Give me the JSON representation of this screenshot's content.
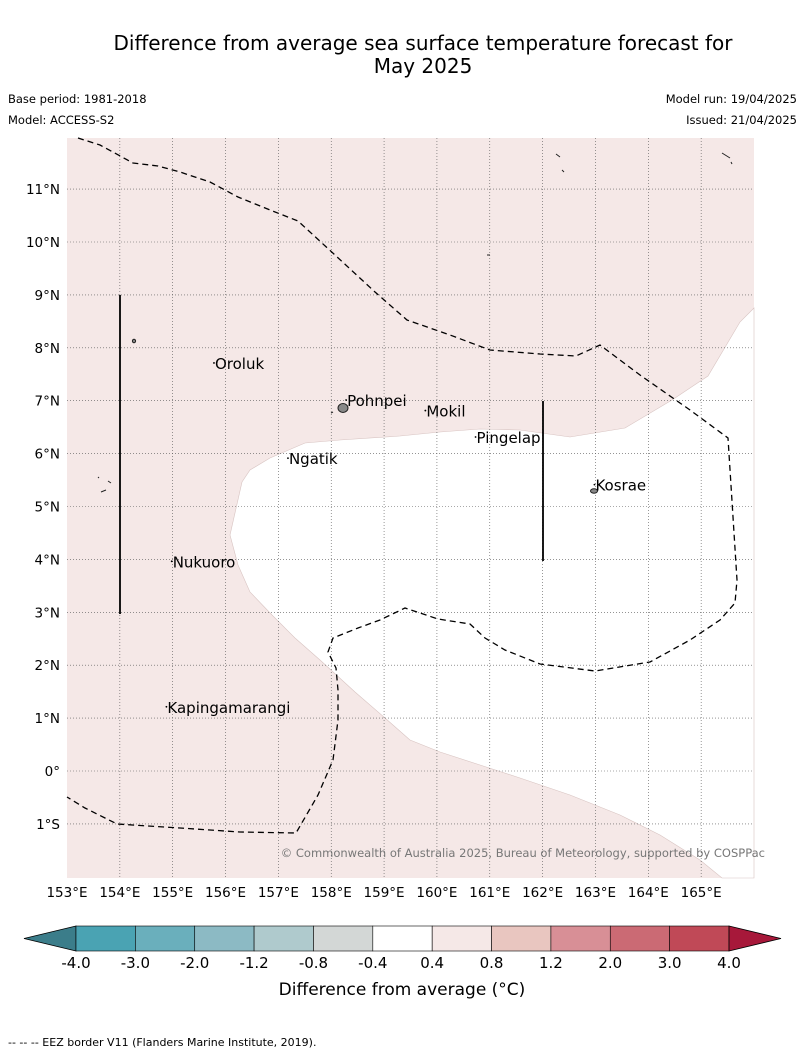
{
  "title_line1": "Difference from average sea surface temperature forecast for",
  "title_line2": "May 2025",
  "base_period": "Base period: 1981-2018",
  "model": "Model: ACCESS-S2",
  "model_run": "Model run: 19/04/2025",
  "issued": "Issued: 21/04/2025",
  "copyright": "© Commonwealth of Australia 2025, Bureau of Meteorology, supported by COSPPac",
  "lon_ticks": [
    "153°E",
    "154°E",
    "155°E",
    "156°E",
    "157°E",
    "158°E",
    "159°E",
    "160°E",
    "161°E",
    "162°E",
    "163°E",
    "164°E",
    "165°E"
  ],
  "lat_ticks": [
    "11°N",
    "10°N",
    "9°N",
    "8°N",
    "7°N",
    "6°N",
    "5°N",
    "4°N",
    "3°N",
    "2°N",
    "1°N",
    "0°",
    "1°S"
  ],
  "places": [
    {
      "name": "Oroluk",
      "lon": 155.8,
      "lat": 7.6
    },
    {
      "name": "Pohnpei",
      "lon": 158.3,
      "lat": 6.9
    },
    {
      "name": "Mokil",
      "lon": 159.8,
      "lat": 6.7
    },
    {
      "name": "Pingelap",
      "lon": 160.75,
      "lat": 6.2
    },
    {
      "name": "Ngatik",
      "lon": 157.2,
      "lat": 5.8
    },
    {
      "name": "Kosrae",
      "lon": 163.0,
      "lat": 5.3
    },
    {
      "name": "Nukuoro",
      "lon": 155.0,
      "lat": 3.85
    },
    {
      "name": "Kapingamarangi",
      "lon": 154.9,
      "lat": 1.1
    }
  ],
  "colorbar": {
    "title": "Difference from average (°C)",
    "tick_labels": [
      "-4.0",
      "-3.0",
      "-2.0",
      "-1.2",
      "-0.8",
      "-0.4",
      "0.4",
      "0.8",
      "1.2",
      "2.0",
      "3.0",
      "4.0"
    ],
    "colors": [
      "#3b7d8a",
      "#4aa3b3",
      "#6aafbc",
      "#8cbac4",
      "#afcacd",
      "#d3d7d6",
      "#ffffff",
      "#f5e8e7",
      "#e9c6c0",
      "#d88f96",
      "#cb6a74",
      "#c04957",
      "#a7183a"
    ]
  },
  "footer": "--  --  -- EEZ border V11 (Flanders Marine Institute, 2019)."
}
